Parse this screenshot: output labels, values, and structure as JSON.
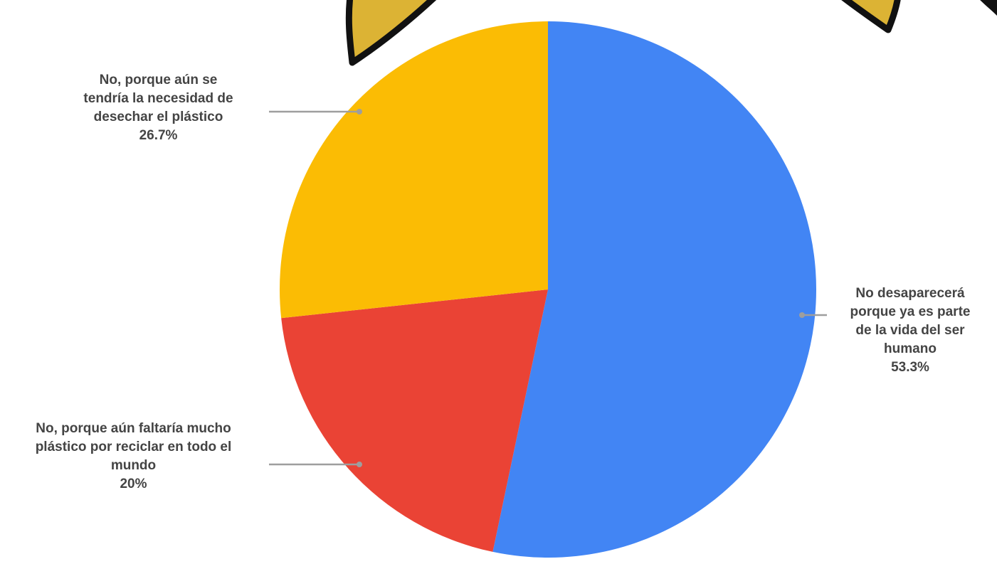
{
  "chart_data": {
    "type": "pie",
    "start_angle_deg": 0,
    "direction": "clockwise",
    "slices": [
      {
        "label": "No desaparecerá\nporque ya es parte\nde la vida del ser\nhumano",
        "value": 53.3,
        "value_label": "53.3%",
        "color": "#4285f4"
      },
      {
        "label": "No, porque aún faltaría mucho\nplástico por reciclar en todo el\nmundo",
        "value": 20,
        "value_label": "20%",
        "color": "#ea4335"
      },
      {
        "label": "No, porque aún se\ntendría la necesidad de\ndesechar el plástico",
        "value": 26.7,
        "value_label": "26.7%",
        "color": "#fbbc04"
      }
    ]
  },
  "decor": {
    "sticker_fill": "#dcb334",
    "sticker_stroke": "#111111"
  }
}
